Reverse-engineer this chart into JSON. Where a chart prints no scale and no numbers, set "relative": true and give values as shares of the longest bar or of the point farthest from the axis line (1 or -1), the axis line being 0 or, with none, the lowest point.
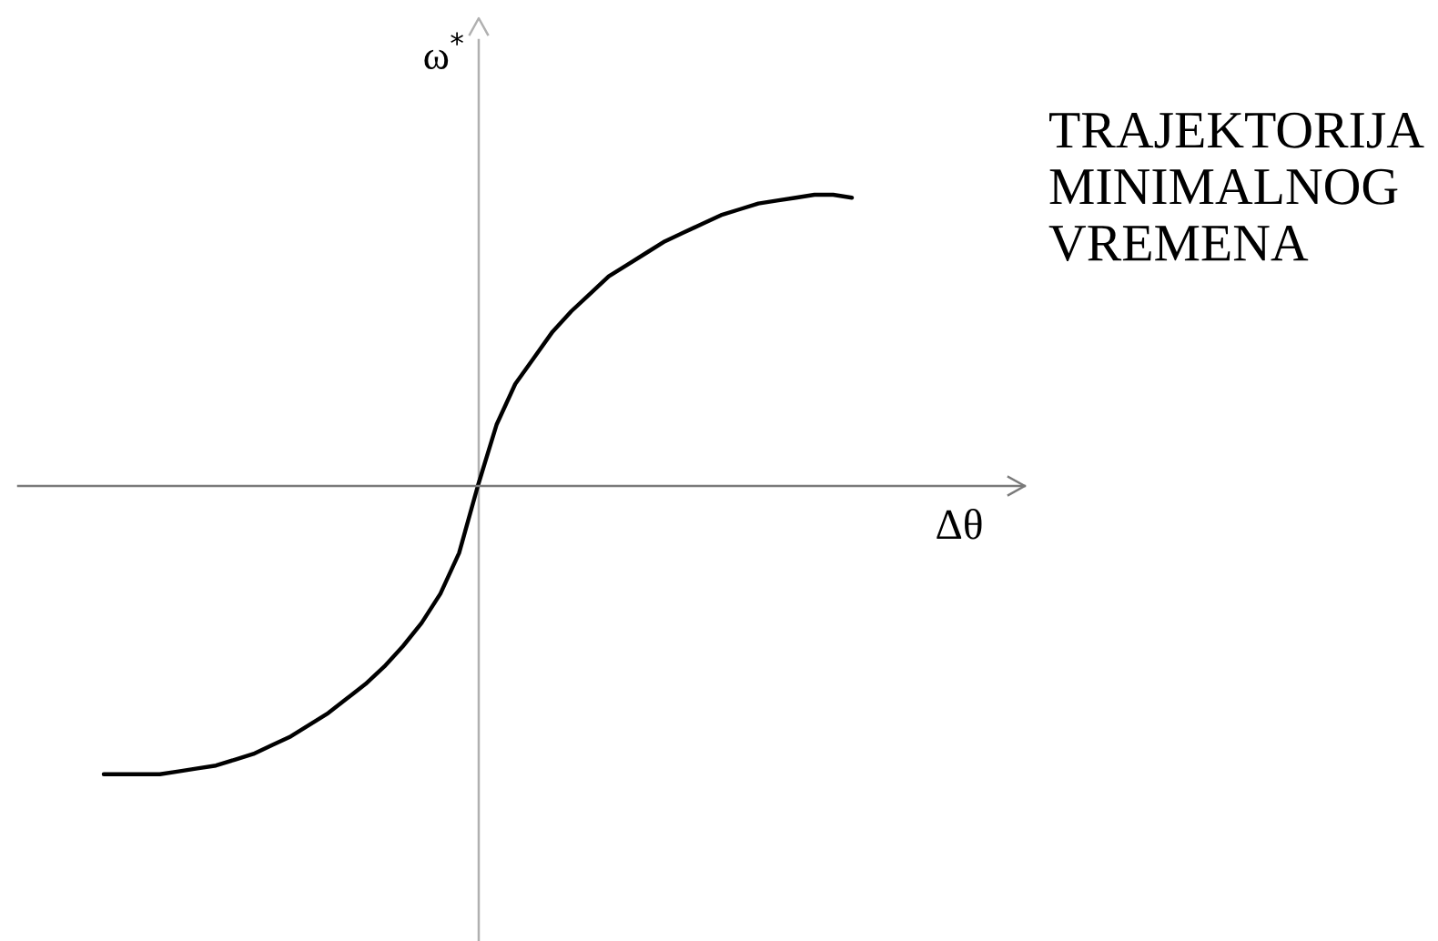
{
  "chart_data": {
    "type": "line",
    "relative": true,
    "xlabel": "Δθ",
    "ylabel": "ω$^{*}$",
    "annotations": [
      "TRAJEKTORIJA MINIMALNOG VREMENA"
    ],
    "categories": [
      null,
      null,
      null,
      null,
      null,
      null,
      null,
      null,
      null,
      null,
      null,
      null,
      null,
      null,
      null,
      null,
      null,
      null,
      null,
      null,
      null,
      null,
      null,
      null,
      null,
      null,
      null,
      null,
      null,
      null,
      null,
      null,
      null,
      null,
      null,
      null,
      null,
      null,
      null,
      null,
      null
    ],
    "series": [
      {
        "color": "#000000",
        "values": [
          -0.99,
          -0.99,
          -0.99,
          -0.99,
          -0.98,
          -0.97,
          -0.96,
          -0.94,
          -0.92,
          -0.89,
          -0.86,
          -0.82,
          -0.78,
          -0.73,
          -0.68,
          -0.62,
          -0.55,
          -0.47,
          -0.37,
          -0.23,
          0,
          0.21,
          0.35,
          0.44,
          0.53,
          0.6,
          0.66,
          0.72,
          0.76,
          0.8,
          0.84,
          0.87,
          0.9,
          0.93,
          0.95,
          0.97,
          0.98,
          0.99,
          1.0,
          1.0,
          0.99
        ]
      }
    ]
  }
}
